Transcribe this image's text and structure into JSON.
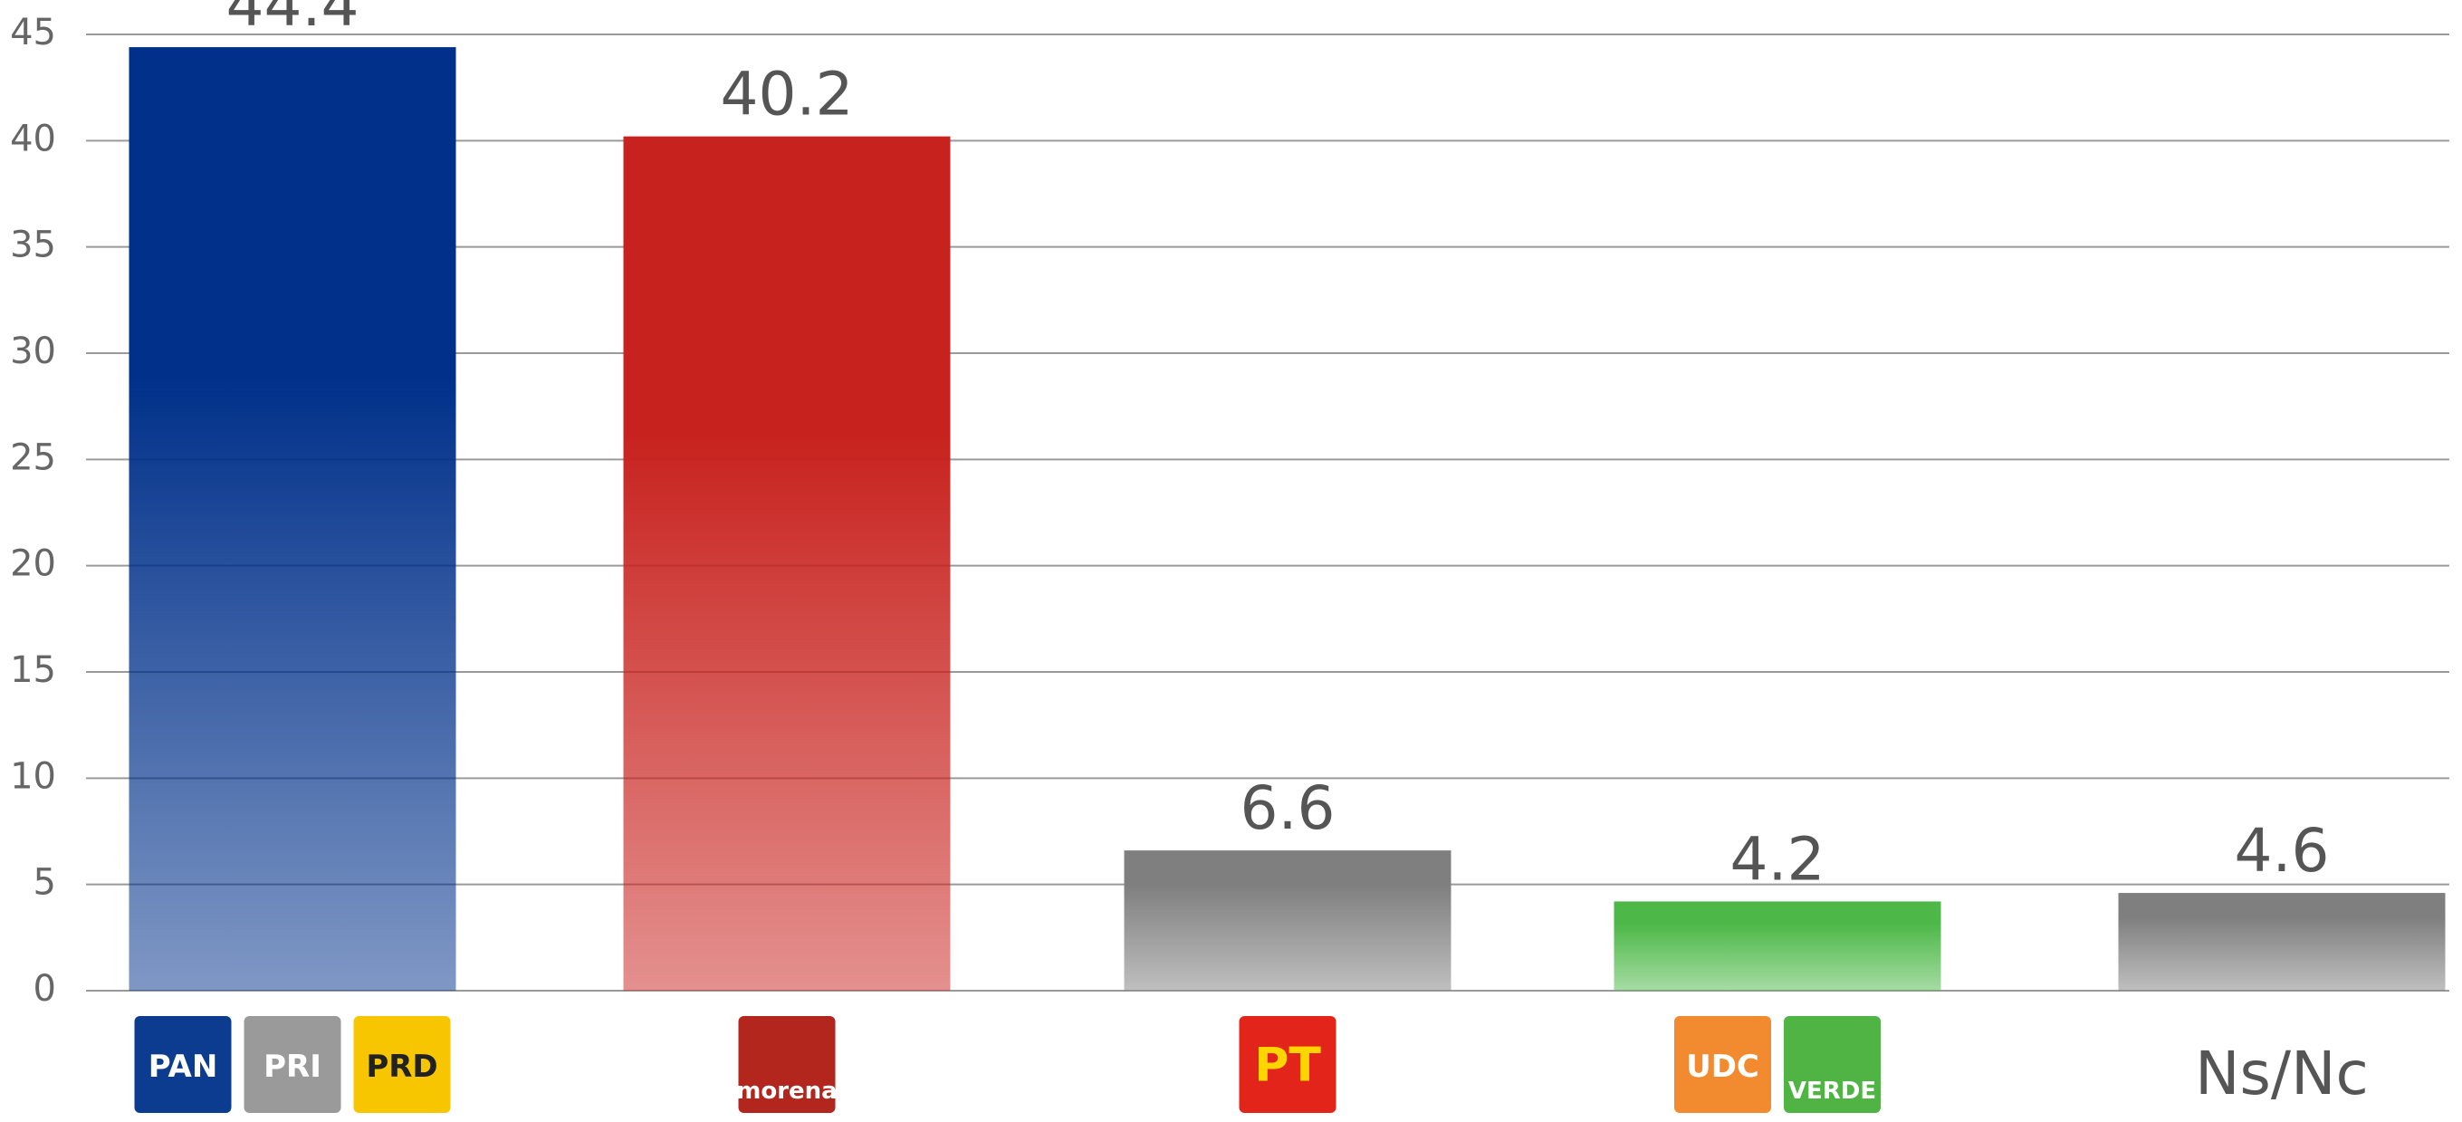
{
  "chart_data": {
    "type": "bar",
    "categories": [
      [
        "PAN",
        "PRI",
        "PRD"
      ],
      [
        "morena"
      ],
      [
        "PT"
      ],
      [
        "UDC",
        "VERDE"
      ],
      [
        "Ns/Nc"
      ]
    ],
    "values": [
      44.4,
      40.2,
      6.6,
      4.2,
      4.6
    ],
    "colors": [
      "#00308a",
      "#c8221e",
      "#7f7f7f",
      "#4db848",
      "#7f7f7f"
    ],
    "ylim": [
      0,
      45
    ],
    "yticks": [
      0,
      5,
      10,
      15,
      20,
      25,
      30,
      35,
      40,
      45
    ],
    "grid": true
  }
}
